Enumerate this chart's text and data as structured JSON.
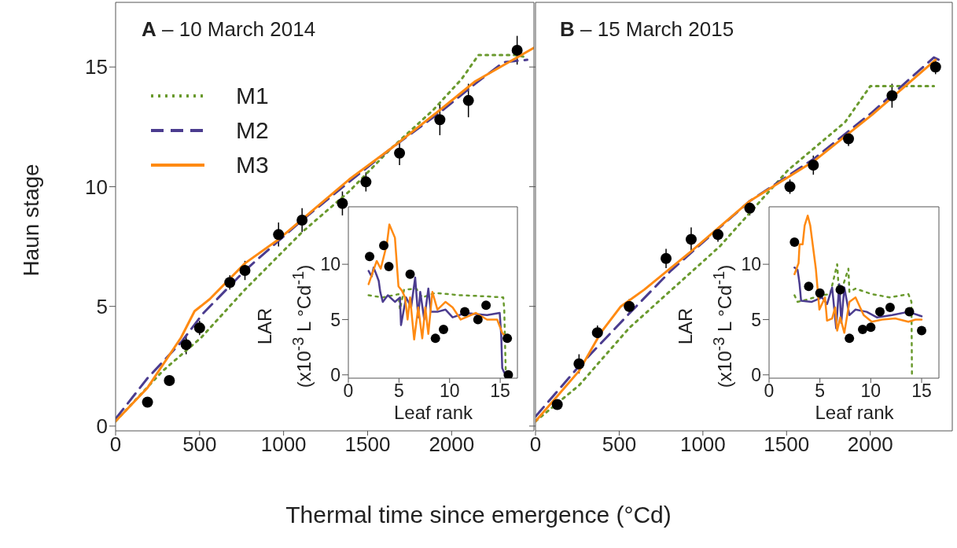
{
  "chart_data": [
    {
      "type": "line",
      "title": "A – 10 March 2014",
      "xlabel": "Thermal time since emergence (°Cd)",
      "ylabel": "Haun stage",
      "xlim": [
        0,
        2490
      ],
      "xticks": [
        0,
        500,
        1000,
        1500,
        2000
      ],
      "ylim": [
        -0.2,
        17.7
      ],
      "yticks": [
        0,
        5,
        10,
        15
      ],
      "legend": "top left",
      "series": [
        {
          "type": "scatter",
          "color": "#000000",
          "marker": "circle",
          "x": [
            190,
            320,
            420,
            500,
            680,
            770,
            970,
            1110,
            1350,
            1490,
            1690,
            1930,
            2100,
            2390
          ],
          "values": [
            1.0,
            1.9,
            3.4,
            4.1,
            6.0,
            6.5,
            8.0,
            8.6,
            9.3,
            10.2,
            11.4,
            12.8,
            13.6,
            15.7
          ],
          "errors": [
            0.2,
            0.2,
            0.4,
            0.3,
            0.3,
            0.4,
            0.5,
            0.5,
            0.5,
            0.4,
            0.5,
            0.65,
            0.7,
            0.6
          ]
        },
        {
          "name": "M1",
          "color": "#6a9a2e",
          "line_style": "dotted",
          "marker": "none",
          "x": [
            0,
            280,
            510,
            770,
            1110,
            1390,
            1640,
            1890,
            2060,
            2160,
            2380,
            2450
          ],
          "values": [
            0.2,
            2.3,
            3.7,
            5.7,
            8.1,
            9.8,
            11.6,
            13.2,
            14.5,
            15.5,
            15.5,
            15.4
          ]
        },
        {
          "name": "M2",
          "color": "#4b3c8f",
          "line_style": "dashed",
          "marker": "none",
          "x": [
            0,
            190,
            390,
            520,
            770,
            1110,
            1390,
            1640,
            1930,
            2140,
            2310,
            2450
          ],
          "values": [
            0.3,
            2.0,
            3.5,
            4.7,
            6.5,
            8.6,
            10.2,
            11.6,
            13.1,
            14.3,
            15.2,
            15.3
          ]
        },
        {
          "name": "M3",
          "color": "#ff8a12",
          "line_style": "solid",
          "marker": "none",
          "x": [
            0,
            190,
            390,
            470,
            560,
            770,
            970,
            1390,
            1640,
            1930,
            2140,
            2490
          ],
          "values": [
            0.2,
            1.6,
            3.7,
            4.8,
            5.3,
            6.8,
            7.8,
            10.3,
            11.6,
            13.2,
            14.4,
            15.8
          ]
        }
      ]
    },
    {
      "type": "line",
      "xlabel": "Leaf rank",
      "ylabel": "LAR\n(x10$^{-3}$ L °Cd$^{-1}$)",
      "xlim": [
        0,
        16.7
      ],
      "xticks": [
        0,
        5,
        10,
        15
      ],
      "ylim": [
        -0.3,
        15.2
      ],
      "yticks": [
        0,
        5,
        10
      ],
      "series": [
        {
          "type": "scatter",
          "color": "#000000",
          "marker": "circle",
          "x": [
            2.1,
            3.5,
            4.0,
            6.1,
            8.6,
            9.4,
            11.5,
            12.8,
            13.6,
            15.7,
            15.8
          ],
          "values": [
            10.7,
            11.7,
            9.8,
            9.1,
            3.3,
            4.1,
            5.7,
            5.0,
            6.3,
            3.3,
            0
          ]
        },
        {
          "color": "#6a9a2e",
          "line_style": "dotted",
          "marker": "none",
          "x": [
            2.0,
            3.4,
            4.95,
            5.1,
            5.5,
            6.7,
            7.3,
            8.55,
            11.1,
            13.6,
            15.3,
            15.4,
            15.5,
            15.55
          ],
          "values": [
            7.2,
            7.0,
            7.3,
            5.9,
            7.7,
            7.8,
            7.0,
            7.4,
            7.2,
            7.1,
            7.0,
            5.9,
            2.0,
            0.2
          ]
        },
        {
          "color": "#4b3c8f",
          "line_style": "solid",
          "marker": "none",
          "x": [
            2.0,
            2.3,
            2.5,
            2.8,
            3.0,
            3.15,
            3.4,
            3.9,
            4.6,
            5.1,
            5.2,
            5.7,
            6.2,
            6.6,
            6.9,
            7.1,
            7.5,
            7.9,
            8.15,
            8.8,
            9.6,
            10.3,
            11.6,
            12.6,
            13.7,
            14.95,
            15.1,
            15.2,
            15.4
          ],
          "values": [
            9.4,
            8.9,
            9.7,
            9.0,
            8.5,
            7.5,
            6.6,
            7.2,
            6.6,
            7.0,
            4.5,
            7.0,
            6.1,
            8.8,
            5.2,
            7.5,
            5.0,
            7.8,
            5.7,
            5.7,
            5.9,
            5.2,
            5.6,
            5.5,
            5.4,
            5.6,
            3.6,
            0.6,
            0.2
          ]
        },
        {
          "color": "#ff8a12",
          "line_style": "solid",
          "marker": "none",
          "x": [
            2.0,
            2.8,
            3.2,
            3.8,
            4.05,
            4.6,
            4.95,
            5.3,
            5.6,
            5.85,
            6.1,
            6.5,
            6.9,
            7.3,
            7.6,
            7.9,
            8.3,
            8.8,
            9.6,
            10.3,
            11.1,
            11.6,
            12.6,
            13.7,
            14.7,
            15.2,
            15.7
          ],
          "values": [
            8.2,
            10.3,
            9.6,
            11.8,
            13.6,
            12.4,
            8.0,
            7.6,
            7.0,
            5.0,
            7.0,
            3.2,
            6.1,
            3.3,
            6.1,
            3.7,
            7.5,
            5.9,
            6.6,
            6.1,
            5.0,
            5.2,
            5.6,
            5.0,
            5.0,
            3.8,
            3.3
          ]
        }
      ]
    },
    {
      "type": "line",
      "title": "B – 15 March 2015",
      "xlim": [
        0,
        2490
      ],
      "xticks": [
        0,
        500,
        1000,
        1500,
        2000
      ],
      "ylim": [
        -0.2,
        17.7
      ],
      "yticks": [
        0,
        5,
        10,
        15
      ],
      "tick_labels": "x",
      "series": [
        {
          "type": "scatter",
          "color": "#000000",
          "marker": "circle",
          "x": [
            130,
            260,
            370,
            560,
            780,
            930,
            1090,
            1280,
            1520,
            1660,
            1870,
            2130,
            2390
          ],
          "values": [
            0.9,
            2.6,
            3.9,
            5.0,
            7.0,
            7.8,
            8.0,
            9.1,
            10.0,
            10.9,
            12.0,
            13.8,
            15.0
          ],
          "errors": [
            0.2,
            0.4,
            0.3,
            0.3,
            0.4,
            0.5,
            0.3,
            0.3,
            0.3,
            0.4,
            0.3,
            0.5,
            0.3
          ]
        },
        {
          "color": "#6a9a2e",
          "line_style": "dotted",
          "marker": "none",
          "x": [
            0,
            260,
            560,
            1100,
            1510,
            1850,
            2000,
            2380
          ],
          "values": [
            0.2,
            1.7,
            4.1,
            7.5,
            10.7,
            12.7,
            14.2,
            14.2
          ]
        },
        {
          "color": "#4b3c8f",
          "line_style": "dashed",
          "marker": "none",
          "x": [
            0,
            260,
            560,
            810,
            1280,
            1670,
            2010,
            2380,
            2410
          ],
          "values": [
            0.4,
            2.5,
            4.7,
            6.5,
            9.4,
            11.2,
            13.1,
            15.4,
            15.3
          ]
        },
        {
          "color": "#ff8a12",
          "line_style": "solid",
          "marker": "none",
          "x": [
            0,
            260,
            390,
            510,
            650,
            930,
            1280,
            1670,
            2010,
            2390
          ],
          "values": [
            0.2,
            2.3,
            3.9,
            5.0,
            5.7,
            7.3,
            9.4,
            11.1,
            13.0,
            15.3
          ]
        }
      ]
    },
    {
      "type": "line",
      "xlabel": "Leaf rank",
      "ylabel": "LAR\n(x10$^{-3}$ L °Cd$^{-1}$)",
      "xlim": [
        0,
        16.7
      ],
      "xticks": [
        0,
        5,
        10,
        15
      ],
      "ylim": [
        -0.3,
        15.2
      ],
      "yticks": [
        0,
        5,
        10
      ],
      "series": [
        {
          "type": "scatter",
          "color": "#000000",
          "marker": "circle",
          "x": [
            2.5,
            3.9,
            5.0,
            7.0,
            7.9,
            9.2,
            10.0,
            10.9,
            11.9,
            13.8,
            15.0
          ],
          "values": [
            12.0,
            8.0,
            7.4,
            7.7,
            3.3,
            4.1,
            4.3,
            5.7,
            6.1,
            5.7,
            4.0
          ]
        },
        {
          "color": "#6a9a2e",
          "line_style": "dotted",
          "marker": "none",
          "x": [
            2.5,
            2.8,
            3.7,
            5.2,
            6.0,
            6.7,
            6.9,
            7.8,
            7.9,
            8.5,
            10.1,
            11.9,
            13.7,
            14.0,
            14.05
          ],
          "values": [
            7.2,
            6.6,
            6.8,
            7.2,
            7.3,
            10.0,
            7.0,
            9.6,
            7.5,
            7.8,
            7.3,
            7.0,
            7.3,
            6.6,
            0
          ]
        },
        {
          "color": "#4b3c8f",
          "line_style": "solid",
          "marker": "none",
          "x": [
            2.5,
            2.8,
            2.9,
            3.0,
            3.15,
            4.2,
            5.2,
            5.7,
            6.2,
            6.6,
            6.9,
            7.1,
            7.4,
            7.9,
            8.5,
            9.6,
            10.6,
            12.1,
            13.7,
            15.0
          ],
          "values": [
            9.7,
            9.5,
            8.9,
            8.2,
            6.7,
            6.6,
            7.0,
            6.4,
            7.9,
            4.2,
            8.2,
            4.7,
            7.9,
            5.4,
            5.9,
            5.7,
            5.2,
            5.4,
            5.7,
            5.3
          ]
        },
        {
          "color": "#ff8a12",
          "line_style": "solid",
          "marker": "none",
          "x": [
            2.5,
            2.9,
            3.0,
            3.3,
            3.5,
            3.8,
            4.05,
            4.6,
            4.95,
            5.5,
            5.7,
            6.2,
            6.5,
            6.7,
            7.0,
            7.4,
            7.9,
            8.5,
            9.3,
            10.1,
            11.1,
            12.4,
            13.7,
            14.4,
            15.0
          ],
          "values": [
            9.1,
            10.1,
            11.8,
            11.8,
            13.5,
            14.4,
            13.5,
            9.6,
            5.9,
            7.0,
            4.9,
            5.1,
            6.1,
            4.0,
            5.2,
            3.8,
            6.6,
            7.0,
            5.4,
            4.8,
            5.0,
            5.1,
            4.8,
            5.0,
            5.0
          ]
        }
      ]
    }
  ]
}
